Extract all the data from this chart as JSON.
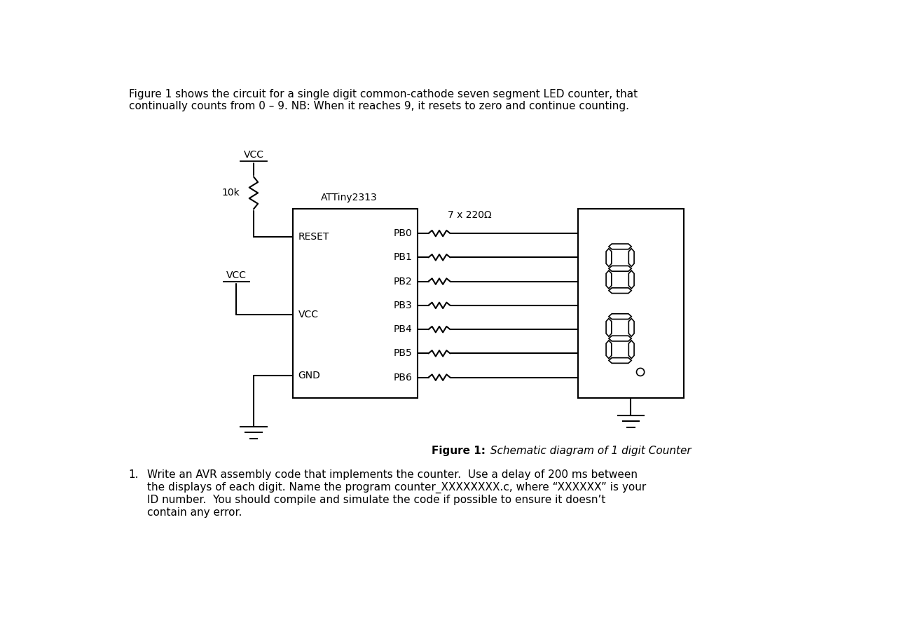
{
  "title_text": "Figure 1 shows the circuit for a single digit common-cathode seven segment LED counter, that\ncontinually counts from 0 – 9. NB: When it reaches 9, it resets to zero and continue counting.",
  "figure_caption_bold": "Figure 1:",
  "figure_caption_italic": " Schematic diagram of 1 digit Counter",
  "question_text": "Write an AVR assembly code that implements the counter.  Use a delay of 200 ms between\nthe displays of each digit. Name the program counter_XXXXXXXX.c, where “XXXXXX” is your\nID number.  You should compile and simulate the code if possible to ensure it doesn’t\ncontain any error.",
  "attiny_label": "ATTiny2313",
  "vcc_top": "VCC",
  "vcc_mid": "VCC",
  "resistor_label": "10k",
  "resistors_label": "7 x 220Ω",
  "reset_label": "RESET",
  "gnd_label": "GND",
  "vcc_label2": "VCC",
  "pb_labels": [
    "PB0",
    "PB1",
    "PB2",
    "PB3",
    "PB4",
    "PB5",
    "PB6"
  ],
  "bg_color": "#ffffff",
  "line_color": "#000000",
  "text_color": "#000000",
  "font_size_body": 11,
  "font_size_labels": 10,
  "font_size_small": 9,
  "lw": 1.5
}
